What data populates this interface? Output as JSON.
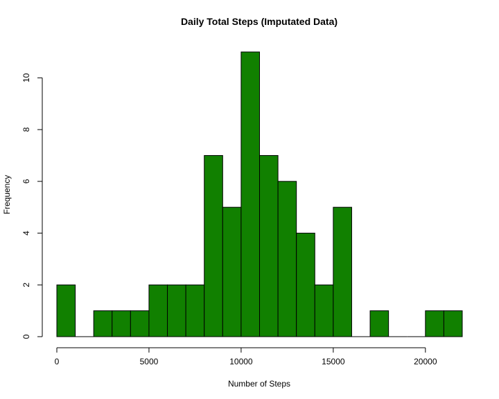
{
  "chart_data": {
    "type": "bar",
    "title": "Daily Total Steps (Imputated Data)",
    "xlabel": "Number of Steps",
    "ylabel": "Frequency",
    "bin_width": 1000,
    "bins": [
      {
        "start": 0,
        "end": 1000,
        "count": 2
      },
      {
        "start": 1000,
        "end": 2000,
        "count": 0
      },
      {
        "start": 2000,
        "end": 3000,
        "count": 1
      },
      {
        "start": 3000,
        "end": 4000,
        "count": 1
      },
      {
        "start": 4000,
        "end": 5000,
        "count": 1
      },
      {
        "start": 5000,
        "end": 6000,
        "count": 2
      },
      {
        "start": 6000,
        "end": 7000,
        "count": 2
      },
      {
        "start": 7000,
        "end": 8000,
        "count": 2
      },
      {
        "start": 8000,
        "end": 9000,
        "count": 7
      },
      {
        "start": 9000,
        "end": 10000,
        "count": 5
      },
      {
        "start": 10000,
        "end": 11000,
        "count": 11
      },
      {
        "start": 11000,
        "end": 12000,
        "count": 7
      },
      {
        "start": 12000,
        "end": 13000,
        "count": 6
      },
      {
        "start": 13000,
        "end": 14000,
        "count": 4
      },
      {
        "start": 14000,
        "end": 15000,
        "count": 2
      },
      {
        "start": 15000,
        "end": 16000,
        "count": 5
      },
      {
        "start": 16000,
        "end": 17000,
        "count": 0
      },
      {
        "start": 17000,
        "end": 18000,
        "count": 1
      },
      {
        "start": 18000,
        "end": 19000,
        "count": 0
      },
      {
        "start": 19000,
        "end": 20000,
        "count": 0
      },
      {
        "start": 20000,
        "end": 21000,
        "count": 1
      },
      {
        "start": 21000,
        "end": 22000,
        "count": 1
      }
    ],
    "xlim": [
      0,
      22000
    ],
    "ylim": [
      0,
      11
    ],
    "x_ticks": [
      0,
      5000,
      10000,
      15000,
      20000
    ],
    "y_ticks": [
      0,
      2,
      4,
      6,
      8,
      10
    ],
    "bar_color": "#118000",
    "grid": false,
    "legend": "none"
  }
}
